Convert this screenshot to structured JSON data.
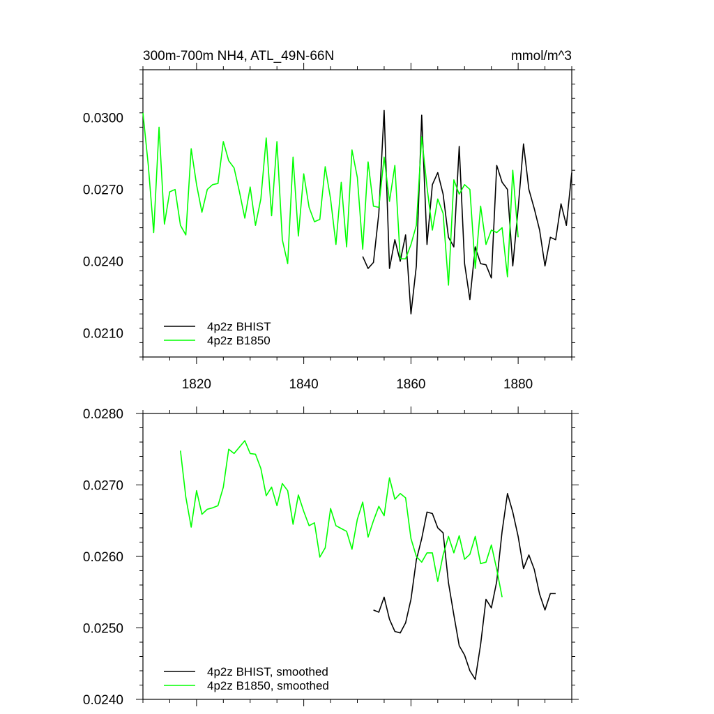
{
  "chart_data": [
    {
      "type": "line",
      "title": "300m-700m NH4, ATL_49N-66N",
      "units": "mmol/m^3",
      "xlim": [
        1810,
        1890
      ],
      "ylim": [
        0.02,
        0.032
      ],
      "x_ticks": [
        1820,
        1840,
        1860,
        1880
      ],
      "x_tick_labels": [
        "1820",
        "1840",
        "1860",
        "1880"
      ],
      "y_ticks": [
        0.021,
        0.024,
        0.027,
        0.03
      ],
      "y_tick_labels": [
        "0.0210",
        "0.0240",
        "0.0270",
        "0.0300"
      ],
      "legend_position": "bottom-left",
      "series": [
        {
          "name": "4p2z BHIST",
          "color": "#000000",
          "x": [
            1851,
            1852,
            1853,
            1854,
            1855,
            1856,
            1857,
            1858,
            1859,
            1860,
            1861,
            1862,
            1863,
            1864,
            1865,
            1866,
            1867,
            1868,
            1869,
            1870,
            1871,
            1872,
            1873,
            1874,
            1875,
            1876,
            1877,
            1878,
            1879,
            1880,
            1881,
            1882,
            1883,
            1884,
            1885,
            1886,
            1887,
            1888,
            1889,
            1890
          ],
          "y": [
            0.0242,
            0.0237,
            0.02395,
            0.026,
            0.0303,
            0.0237,
            0.0249,
            0.024,
            0.0251,
            0.0218,
            0.0238,
            0.0301,
            0.0247,
            0.0272,
            0.0277,
            0.0268,
            0.025,
            0.0246,
            0.0288,
            0.0239,
            0.0224,
            0.0246,
            0.0239,
            0.02385,
            0.0233,
            0.028,
            0.0273,
            0.027,
            0.0238,
            0.0262,
            0.0289,
            0.027,
            0.0262,
            0.0253,
            0.0238,
            0.025,
            0.0249,
            0.0264,
            0.0255,
            0.0277
          ]
        },
        {
          "name": "4p2z B1850",
          "color": "#00ff00",
          "x": [
            1810,
            1811,
            1812,
            1813,
            1814,
            1815,
            1816,
            1817,
            1818,
            1819,
            1820,
            1821,
            1822,
            1823,
            1824,
            1825,
            1826,
            1827,
            1828,
            1829,
            1830,
            1831,
            1832,
            1833,
            1834,
            1835,
            1836,
            1837,
            1838,
            1839,
            1840,
            1841,
            1842,
            1843,
            1844,
            1845,
            1846,
            1847,
            1848,
            1849,
            1850,
            1851,
            1852,
            1853,
            1854,
            1855,
            1856,
            1857,
            1858,
            1859,
            1860,
            1861,
            1862,
            1863,
            1864,
            1865,
            1866,
            1867,
            1868,
            1869,
            1870,
            1871,
            1872,
            1873,
            1874,
            1875,
            1876,
            1877,
            1878,
            1879,
            1880
          ],
          "y": [
            0.0302,
            0.028,
            0.0252,
            0.0296,
            0.02555,
            0.0269,
            0.027,
            0.0255,
            0.0251,
            0.0287,
            0.0272,
            0.02605,
            0.027,
            0.0272,
            0.02725,
            0.029,
            0.0282,
            0.0279,
            0.0269,
            0.0258,
            0.0271,
            0.0255,
            0.0266,
            0.02915,
            0.0259,
            0.029,
            0.0249,
            0.0239,
            0.02835,
            0.02505,
            0.02765,
            0.02625,
            0.02565,
            0.02575,
            0.02795,
            0.0266,
            0.0247,
            0.0273,
            0.0246,
            0.02865,
            0.0275,
            0.0245,
            0.02815,
            0.0263,
            0.02625,
            0.02835,
            0.0265,
            0.028,
            0.0241,
            0.0241,
            0.0247,
            0.0255,
            0.0292,
            0.0271,
            0.0253,
            0.0266,
            0.026,
            0.023,
            0.0274,
            0.0268,
            0.0272,
            0.027,
            0.0237,
            0.0263,
            0.0247,
            0.0253,
            0.0252,
            0.0254,
            0.02335,
            0.0278,
            0.025
          ]
        }
      ]
    },
    {
      "type": "line",
      "xlim": [
        1810,
        1890
      ],
      "ylim": [
        0.024,
        0.028
      ],
      "x_ticks": [
        1820,
        1840,
        1860,
        1880
      ],
      "y_ticks": [
        0.024,
        0.025,
        0.026,
        0.027,
        0.028
      ],
      "y_tick_labels": [
        "0.0240",
        "0.0250",
        "0.0260",
        "0.0270",
        "0.0280"
      ],
      "legend_position": "bottom-left",
      "series": [
        {
          "name": "4p2z BHIST, smoothed",
          "color": "#000000",
          "x": [
            1853,
            1854,
            1855,
            1856,
            1857,
            1858,
            1859,
            1860,
            1861,
            1862,
            1863,
            1864,
            1865,
            1866,
            1867,
            1868,
            1869,
            1870,
            1871,
            1872,
            1873,
            1874,
            1875,
            1876,
            1877,
            1878,
            1879,
            1880,
            1881,
            1882,
            1883,
            1884,
            1885,
            1886,
            1887
          ],
          "y": [
            0.02525,
            0.02522,
            0.02543,
            0.02512,
            0.02495,
            0.02493,
            0.02507,
            0.0254,
            0.02595,
            0.02625,
            0.02662,
            0.0266,
            0.0264,
            0.02633,
            0.02563,
            0.02518,
            0.02475,
            0.02462,
            0.0244,
            0.02428,
            0.02477,
            0.0254,
            0.02528,
            0.02565,
            0.02635,
            0.02688,
            0.02662,
            0.02628,
            0.02583,
            0.02602,
            0.02582,
            0.02547,
            0.02525,
            0.02548,
            0.02548
          ]
        },
        {
          "name": "4p2z B1850, smoothed",
          "color": "#00ff00",
          "x": [
            1817,
            1818,
            1819,
            1820,
            1821,
            1822,
            1823,
            1824,
            1825,
            1826,
            1827,
            1828,
            1829,
            1830,
            1831,
            1832,
            1833,
            1834,
            1835,
            1836,
            1837,
            1838,
            1839,
            1840,
            1841,
            1842,
            1843,
            1844,
            1845,
            1846,
            1847,
            1848,
            1849,
            1850,
            1851,
            1852,
            1853,
            1854,
            1855,
            1856,
            1857,
            1858,
            1859,
            1860,
            1861,
            1862,
            1863,
            1864,
            1865,
            1866,
            1867,
            1868,
            1869,
            1870,
            1871,
            1872,
            1873,
            1874,
            1875,
            1876,
            1877
          ],
          "y": [
            0.02748,
            0.02683,
            0.02641,
            0.02692,
            0.02659,
            0.02666,
            0.02668,
            0.02671,
            0.02697,
            0.0275,
            0.02744,
            0.02753,
            0.02762,
            0.02744,
            0.02743,
            0.02723,
            0.02685,
            0.02697,
            0.02671,
            0.02702,
            0.02692,
            0.02645,
            0.02686,
            0.02663,
            0.02643,
            0.02647,
            0.02599,
            0.02612,
            0.02667,
            0.02643,
            0.02639,
            0.02635,
            0.0261,
            0.02652,
            0.02676,
            0.02627,
            0.0265,
            0.0267,
            0.02657,
            0.0271,
            0.0268,
            0.02688,
            0.02682,
            0.02625,
            0.026,
            0.02592,
            0.02605,
            0.02605,
            0.02565,
            0.02602,
            0.02628,
            0.02605,
            0.02629,
            0.02596,
            0.02603,
            0.02628,
            0.0259,
            0.02592,
            0.02616,
            0.02582,
            0.02543
          ]
        }
      ]
    }
  ]
}
